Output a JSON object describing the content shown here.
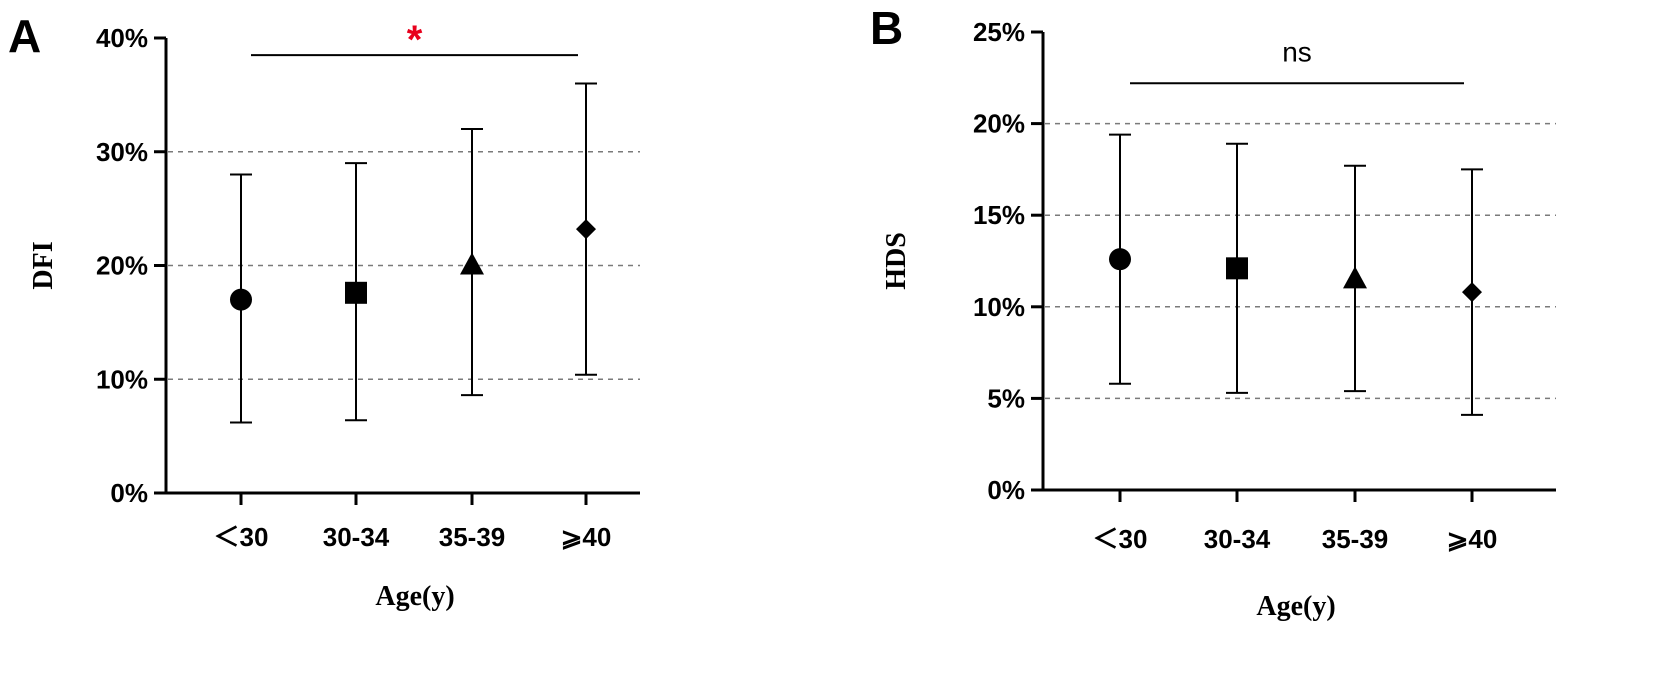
{
  "chart_data": [
    {
      "panel": "A",
      "type": "scatter",
      "categories": [
        "＜30",
        "30-34",
        "35-39",
        "⩾40"
      ],
      "markers": [
        "circle",
        "square",
        "triangle",
        "diamond"
      ],
      "series": [
        {
          "mean": [
            17,
            17.6,
            20,
            23.2
          ],
          "lower": [
            6.2,
            6.4,
            8.6,
            10.4
          ],
          "upper": [
            28,
            29,
            32,
            36
          ]
        }
      ],
      "ylabel": "DFI",
      "xlabel": "Age(y)",
      "ylim": [
        0,
        40
      ],
      "yticks": [
        0,
        10,
        20,
        30,
        40
      ],
      "ytick_labels": [
        "0%",
        "10%",
        "20%",
        "30%",
        "40%"
      ],
      "gridlines": [
        10,
        20,
        30
      ],
      "significance": {
        "label": "*",
        "from": 0,
        "to": 3,
        "y": 38.5,
        "color": "#e8001c"
      }
    },
    {
      "panel": "B",
      "type": "scatter",
      "categories": [
        "＜30",
        "30-34",
        "35-39",
        "⩾40"
      ],
      "markers": [
        "circle",
        "square",
        "triangle",
        "diamond"
      ],
      "series": [
        {
          "mean": [
            12.6,
            12.1,
            11.5,
            10.8
          ],
          "lower": [
            5.8,
            5.3,
            5.4,
            4.1
          ],
          "upper": [
            19.4,
            18.9,
            17.7,
            17.5
          ]
        }
      ],
      "ylabel": "HDS",
      "xlabel": "Age(y)",
      "ylim": [
        0,
        25
      ],
      "yticks": [
        0,
        5,
        10,
        15,
        20,
        25
      ],
      "ytick_labels": [
        "0%",
        "5%",
        "10%",
        "15%",
        "20%",
        "25%"
      ],
      "gridlines": [
        5,
        10,
        15,
        20
      ],
      "significance": {
        "label": "ns",
        "from": 0,
        "to": 3,
        "y": 22.2,
        "color": "#000000"
      }
    }
  ]
}
